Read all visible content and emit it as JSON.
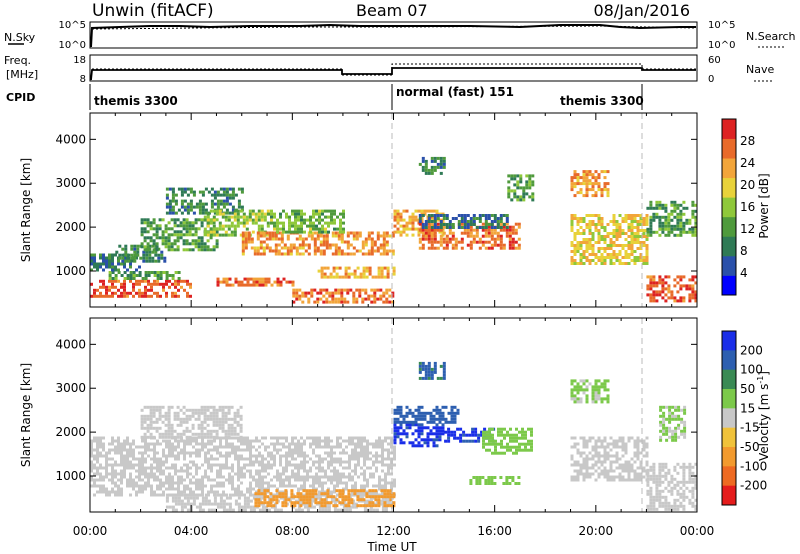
{
  "header": {
    "station": "Unwin (fitACF)",
    "beam": "Beam 07",
    "date": "08/Jan/2016"
  },
  "panels": {
    "sky": {
      "label": "N.Sky",
      "ticks": [
        "10^5",
        "10^0"
      ],
      "right_label": "N.Search",
      "right_ticks": [
        "10^5",
        "10^0"
      ]
    },
    "freq": {
      "label_top": "Freq.",
      "label_bottom": "[MHz]",
      "ticks": [
        "18",
        "8"
      ],
      "right_label": "Nave",
      "right_ticks": [
        "60",
        "0"
      ]
    },
    "cpid": {
      "label": "CPID",
      "segments": [
        "themis 3300",
        "normal (fast) 151",
        "themis 3300"
      ]
    }
  },
  "time_axis": {
    "label": "Time UT",
    "ticks": [
      "00:00",
      "04:00",
      "08:00",
      "12:00",
      "16:00",
      "20:00",
      "00:00"
    ]
  },
  "colors": {
    "frame": "#000000",
    "background": "#ffffff",
    "ground_scatter": "#c8c8c8",
    "dashed_marker": "#bbbbbb"
  },
  "chart_data": [
    {
      "type": "heatmap",
      "title": "",
      "quantity": "Power",
      "xlabel": "Time UT",
      "ylabel": "Slant Range [km]",
      "xlim": [
        0,
        24
      ],
      "ylim": [
        180,
        4600
      ],
      "yticks": [
        1000,
        2000,
        3000,
        4000
      ],
      "colorbar": {
        "label": "Power [dB]",
        "ticks": [
          "4",
          "8",
          "12",
          "16",
          "20",
          "24",
          "28"
        ],
        "min": 0,
        "max": 32,
        "colors": [
          "#0000ff",
          "#2a50aa",
          "#2f7a55",
          "#4f9a3c",
          "#8fc83a",
          "#e8d23a",
          "#f2a53a",
          "#e86a2a",
          "#dd2222"
        ]
      },
      "regions": [
        {
          "t": [
            0.0,
            4.0
          ],
          "r": [
            450,
            800
          ],
          "v": 28
        },
        {
          "t": [
            0.5,
            3.5
          ],
          "r": [
            850,
            1000
          ],
          "v": 12
        },
        {
          "t": [
            0.0,
            2.0
          ],
          "r": [
            1050,
            1400
          ],
          "v": 8
        },
        {
          "t": [
            1.0,
            3.0
          ],
          "r": [
            1200,
            1600
          ],
          "v": 10
        },
        {
          "t": [
            2.0,
            5.0
          ],
          "r": [
            1500,
            2200
          ],
          "v": 12
        },
        {
          "t": [
            3.0,
            6.0
          ],
          "r": [
            2300,
            2900
          ],
          "v": 10
        },
        {
          "t": [
            4.5,
            7.0
          ],
          "r": [
            1800,
            2400
          ],
          "v": 16
        },
        {
          "t": [
            5.0,
            8.0
          ],
          "r": [
            650,
            850
          ],
          "v": 26
        },
        {
          "t": [
            6.0,
            12.0
          ],
          "r": [
            1400,
            1900
          ],
          "v": 24
        },
        {
          "t": [
            7.0,
            10.0
          ],
          "r": [
            1900,
            2400
          ],
          "v": 14
        },
        {
          "t": [
            8.0,
            12.0
          ],
          "r": [
            300,
            600
          ],
          "v": 26
        },
        {
          "t": [
            9.0,
            12.0
          ],
          "r": [
            850,
            1100
          ],
          "v": 22
        },
        {
          "t": [
            12.0,
            14.0
          ],
          "r": [
            1800,
            2400
          ],
          "v": 22
        },
        {
          "t": [
            13.0,
            17.0
          ],
          "r": [
            1500,
            2100
          ],
          "v": 26
        },
        {
          "t": [
            13.0,
            16.5
          ],
          "r": [
            2000,
            2300
          ],
          "v": 8
        },
        {
          "t": [
            13.0,
            14.0
          ],
          "r": [
            3200,
            3600
          ],
          "v": 10
        },
        {
          "t": [
            16.5,
            17.5
          ],
          "r": [
            2600,
            3200
          ],
          "v": 12
        },
        {
          "t": [
            19.0,
            20.5
          ],
          "r": [
            2700,
            3300
          ],
          "v": 24
        },
        {
          "t": [
            19.0,
            22.0
          ],
          "r": [
            1200,
            2300
          ],
          "v": 20
        },
        {
          "t": [
            22.0,
            24.0
          ],
          "r": [
            300,
            900
          ],
          "v": 28
        },
        {
          "t": [
            22.0,
            24.0
          ],
          "r": [
            1800,
            2600
          ],
          "v": 12
        }
      ]
    },
    {
      "type": "heatmap",
      "title": "",
      "quantity": "Velocity",
      "xlabel": "Time UT",
      "ylabel": "Slant Range [km]",
      "xlim": [
        0,
        24
      ],
      "ylim": [
        180,
        4600
      ],
      "yticks": [
        1000,
        2000,
        3000,
        4000
      ],
      "colorbar": {
        "label": "Velocity [m s^-1]",
        "ticks": [
          "200",
          "100",
          "50",
          "15",
          "-15",
          "-50",
          "-100",
          "-200"
        ],
        "bands": [
          {
            "lo": 200,
            "hi": 250,
            "color": "#1a2ee8"
          },
          {
            "lo": 100,
            "hi": 200,
            "color": "#2d5fb0"
          },
          {
            "lo": 50,
            "hi": 100,
            "color": "#3a8a54"
          },
          {
            "lo": 15,
            "hi": 50,
            "color": "#7cc94a"
          },
          {
            "lo": -15,
            "hi": 15,
            "color": "#c8c8c8"
          },
          {
            "lo": -50,
            "hi": -15,
            "color": "#f0c23a"
          },
          {
            "lo": -100,
            "hi": -50,
            "color": "#f29a2e"
          },
          {
            "lo": -200,
            "hi": -100,
            "color": "#ee6a22"
          },
          {
            "lo": -250,
            "hi": -200,
            "color": "#e51c1c"
          }
        ]
      },
      "regions": [
        {
          "t": [
            0.0,
            12.0
          ],
          "r": [
            600,
            1900
          ],
          "v": 0
        },
        {
          "t": [
            2.0,
            6.0
          ],
          "r": [
            1900,
            2600
          ],
          "v": 0
        },
        {
          "t": [
            3.0,
            12.0
          ],
          "r": [
            250,
            600
          ],
          "v": 0
        },
        {
          "t": [
            6.5,
            12.0
          ],
          "r": [
            300,
            700
          ],
          "v": -60
        },
        {
          "t": [
            12.0,
            14.0
          ],
          "r": [
            1700,
            2200
          ],
          "v": 220
        },
        {
          "t": [
            14.0,
            16.0
          ],
          "r": [
            1800,
            2100
          ],
          "v": 220
        },
        {
          "t": [
            15.5,
            17.5
          ],
          "r": [
            1500,
            2100
          ],
          "v": 30
        },
        {
          "t": [
            12.0,
            14.5
          ],
          "r": [
            2200,
            2600
          ],
          "v": 150
        },
        {
          "t": [
            13.0,
            14.0
          ],
          "r": [
            3200,
            3600
          ],
          "v": 120
        },
        {
          "t": [
            15.0,
            17.0
          ],
          "r": [
            800,
            1000
          ],
          "v": 30
        },
        {
          "t": [
            19.0,
            20.5
          ],
          "r": [
            2700,
            3200
          ],
          "v": 20
        },
        {
          "t": [
            19.0,
            22.0
          ],
          "r": [
            900,
            1900
          ],
          "v": 0
        },
        {
          "t": [
            22.0,
            24.0
          ],
          "r": [
            250,
            1300
          ],
          "v": 0
        },
        {
          "t": [
            22.5,
            23.5
          ],
          "r": [
            1800,
            2600
          ],
          "v": 20
        }
      ]
    }
  ]
}
